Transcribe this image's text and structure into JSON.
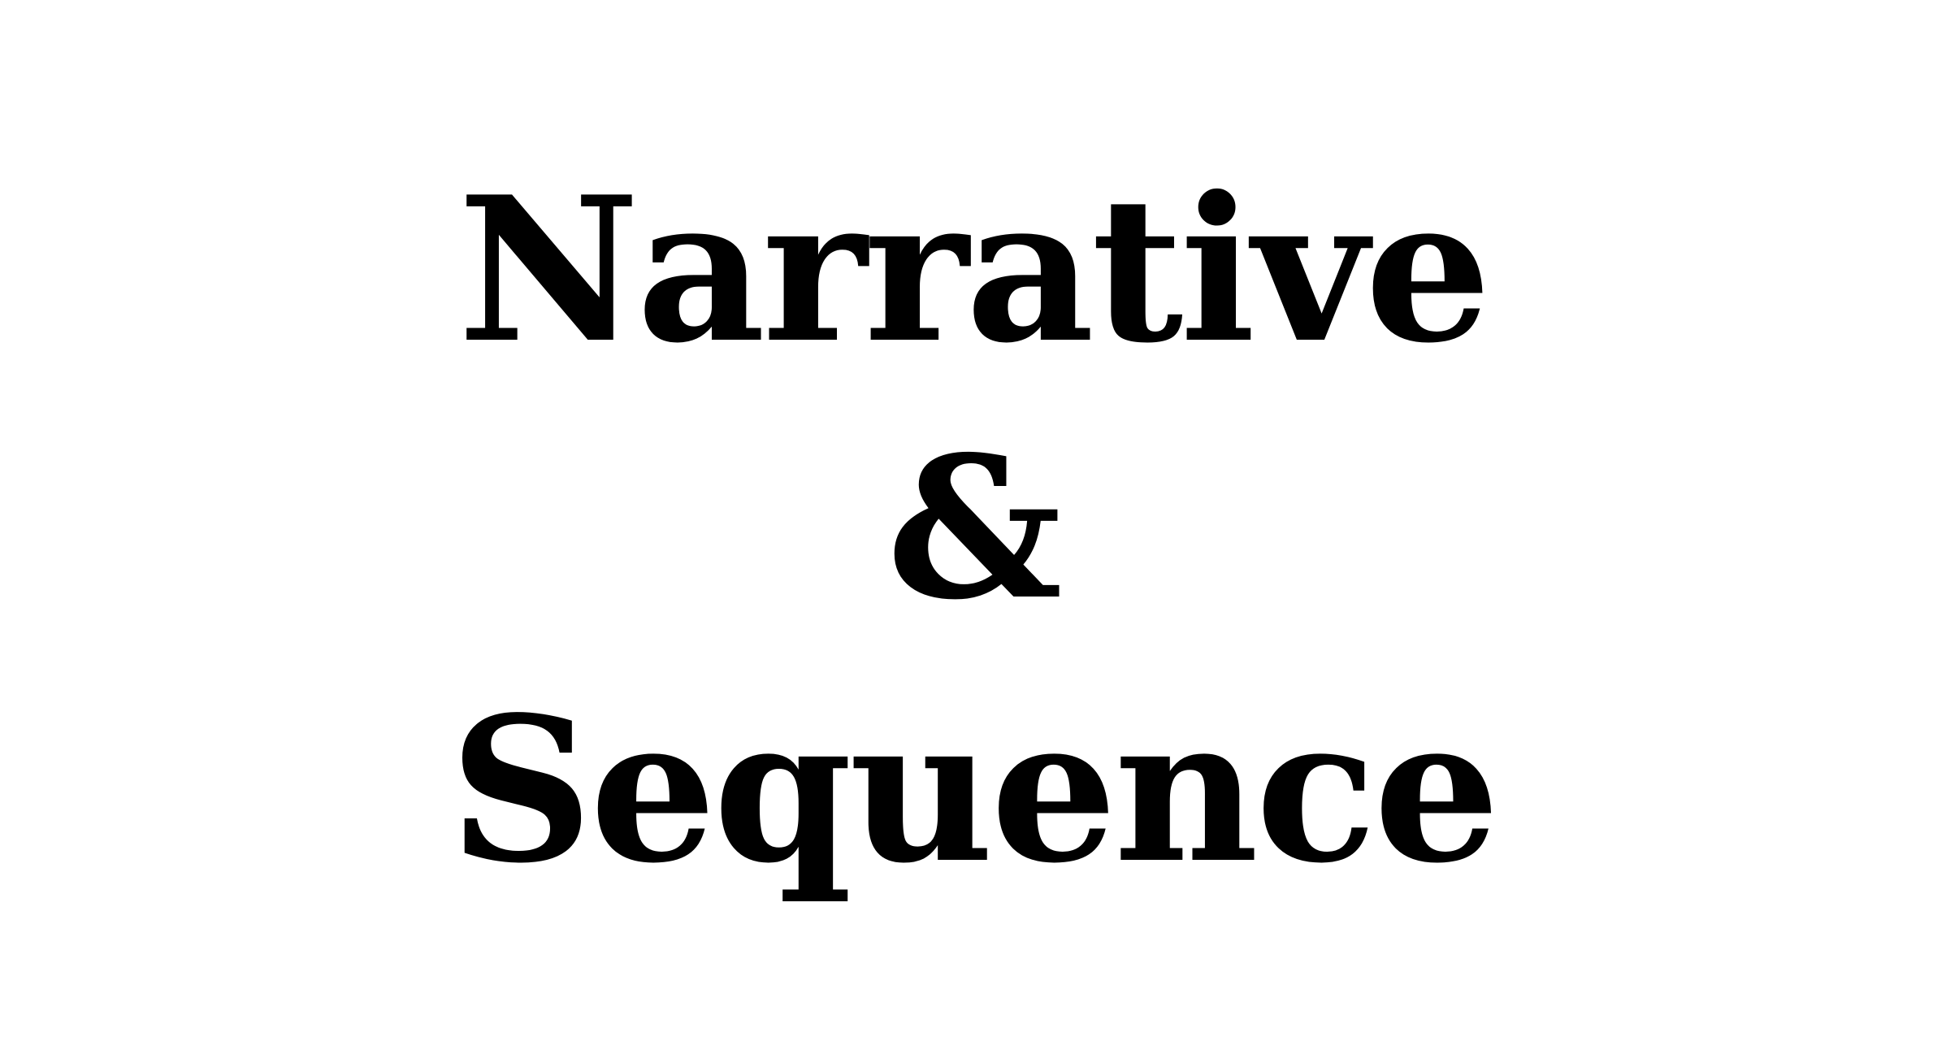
{
  "title": {
    "line1": "Narrative",
    "line2": "&",
    "line3": "Sequence"
  },
  "colors": {
    "background": "#ffffff",
    "text": "#000000"
  }
}
